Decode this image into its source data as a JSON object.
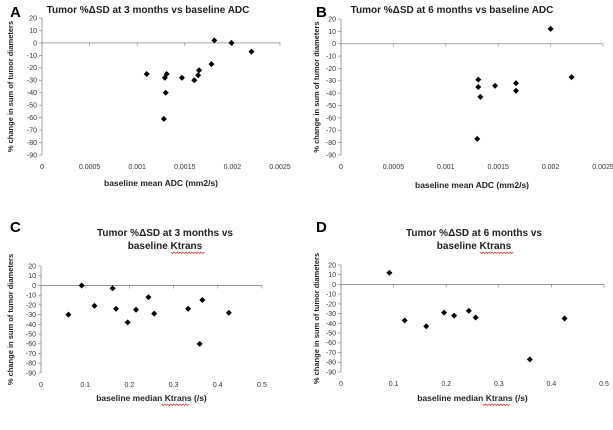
{
  "chart_data": [
    {
      "type": "scatter",
      "letter": "A",
      "title": [
        "Tumor %ΔSD at 3 months vs  baseline ADC"
      ],
      "xlabel": "baseline mean ADC  (mm2/s)",
      "ylabel": "% change in sum of tumor diameters",
      "xlim": [
        0,
        0.0025
      ],
      "ylim": [
        -90,
        20
      ],
      "xticks": [
        "0",
        "0.0005",
        "0.001",
        "0.0015",
        "0.002",
        "0.0025"
      ],
      "yticks": [
        "20",
        "10",
        "0",
        "-10",
        "-20",
        "-30",
        "-40",
        "-50",
        "-60",
        "-70",
        "-80",
        "-90"
      ],
      "points": [
        {
          "x": 0.0011,
          "y": -25
        },
        {
          "x": 0.00129,
          "y": -28
        },
        {
          "x": 0.00131,
          "y": -25
        },
        {
          "x": 0.0013,
          "y": -40
        },
        {
          "x": 0.00128,
          "y": -61
        },
        {
          "x": 0.00147,
          "y": -28
        },
        {
          "x": 0.0016,
          "y": -30
        },
        {
          "x": 0.00164,
          "y": -26
        },
        {
          "x": 0.00165,
          "y": -22
        },
        {
          "x": 0.00178,
          "y": -17
        },
        {
          "x": 0.00181,
          "y": 2
        },
        {
          "x": 0.00199,
          "y": 0
        },
        {
          "x": 0.0022,
          "y": -7
        }
      ]
    },
    {
      "type": "scatter",
      "letter": "B",
      "title": [
        "Tumor %ΔSD at 6 months vs  baseline ADC"
      ],
      "xlabel": "baseline mean ADC  (mm2/s)",
      "ylabel": "% change in sum of tumor diameters",
      "xlim": [
        0,
        0.0025
      ],
      "ylim": [
        -90,
        20
      ],
      "xticks": [
        "0",
        "0.0005",
        "0.001",
        "0.0015",
        "0.002",
        "0.0025"
      ],
      "yticks": [
        "20",
        "10",
        "0",
        "-10",
        "-20",
        "-30",
        "-40",
        "-50",
        "-60",
        "-70",
        "-80",
        "-90"
      ],
      "points": [
        {
          "x": 0.00131,
          "y": -29
        },
        {
          "x": 0.00131,
          "y": -35
        },
        {
          "x": 0.00133,
          "y": -43
        },
        {
          "x": 0.0013,
          "y": -77
        },
        {
          "x": 0.00147,
          "y": -34
        },
        {
          "x": 0.00167,
          "y": -32
        },
        {
          "x": 0.00167,
          "y": -38
        },
        {
          "x": 0.002,
          "y": 12
        },
        {
          "x": 0.0022,
          "y": -27
        }
      ]
    },
    {
      "type": "scatter",
      "letter": "C",
      "title": [
        "Tumor %ΔSD at 3 months vs",
        "baseline Ktrans"
      ],
      "xlabel": "baseline median Ktrans (/s)",
      "ylabel": "% change in sum of tumor diameters",
      "xlim": [
        0,
        0.5
      ],
      "ylim": [
        -90,
        20
      ],
      "xticks": [
        "0",
        "0.1",
        "0.2",
        "0.3",
        "0.4",
        "0.5"
      ],
      "yticks": [
        "20",
        "10",
        "0",
        "-10",
        "-20",
        "-30",
        "-40",
        "-50",
        "-60",
        "-70",
        "-80",
        "-90"
      ],
      "points": [
        {
          "x": 0.062,
          "y": -30
        },
        {
          "x": 0.092,
          "y": 0
        },
        {
          "x": 0.121,
          "y": -21
        },
        {
          "x": 0.162,
          "y": -3
        },
        {
          "x": 0.17,
          "y": -24
        },
        {
          "x": 0.196,
          "y": -38
        },
        {
          "x": 0.215,
          "y": -25
        },
        {
          "x": 0.243,
          "y": -12
        },
        {
          "x": 0.256,
          "y": -29
        },
        {
          "x": 0.333,
          "y": -24
        },
        {
          "x": 0.359,
          "y": -60
        },
        {
          "x": 0.365,
          "y": -15
        },
        {
          "x": 0.425,
          "y": -28
        }
      ]
    },
    {
      "type": "scatter",
      "letter": "D",
      "title": [
        "Tumor %ΔSD at 6 months vs",
        "baseline Ktrans"
      ],
      "xlabel": "baseline median Ktrans (/s)",
      "ylabel": "% change in sum of tumor diameters",
      "xlim": [
        0,
        0.5
      ],
      "ylim": [
        -90,
        20
      ],
      "xticks": [
        "0",
        "0.1",
        "0.2",
        "0.3",
        "0.4",
        "0.5"
      ],
      "yticks": [
        "20",
        "10",
        "0",
        "-10",
        "-20",
        "-30",
        "-40",
        "-50",
        "-60",
        "-70",
        "-80",
        "-90"
      ],
      "points": [
        {
          "x": 0.092,
          "y": 12
        },
        {
          "x": 0.121,
          "y": -37
        },
        {
          "x": 0.162,
          "y": -43
        },
        {
          "x": 0.196,
          "y": -29
        },
        {
          "x": 0.215,
          "y": -32
        },
        {
          "x": 0.243,
          "y": -27
        },
        {
          "x": 0.256,
          "y": -34
        },
        {
          "x": 0.359,
          "y": -77
        },
        {
          "x": 0.425,
          "y": -35
        }
      ]
    }
  ]
}
